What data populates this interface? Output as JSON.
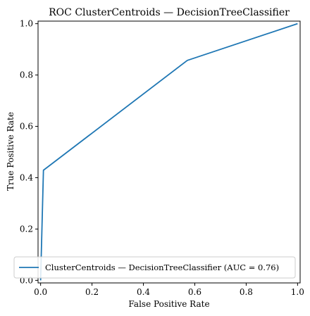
{
  "chart_data": {
    "type": "line",
    "title": "ROC ClusterCentroids — DecisionTreeClassifier",
    "xlabel": "False Positive Rate",
    "ylabel": "True Positive Rate",
    "xlim": [
      -0.01,
      1.01
    ],
    "ylim": [
      -0.01,
      1.01
    ],
    "xticks": [
      0.0,
      0.2,
      0.4,
      0.6,
      0.8,
      1.0
    ],
    "xtick_labels": [
      "0.0",
      "0.2",
      "0.4",
      "0.6",
      "0.8",
      "1.0"
    ],
    "yticks": [
      0.0,
      0.2,
      0.4,
      0.6,
      0.8,
      1.0
    ],
    "ytick_labels": [
      "0.0",
      "0.2",
      "0.4",
      "0.6",
      "0.8",
      "1.0"
    ],
    "grid": false,
    "legend_position": "lower-right",
    "series": [
      {
        "name": "ClusterCentroids — DecisionTreeClassifier (AUC = 0.76)",
        "color": "#1f77b4",
        "x": [
          0.0,
          0.011,
          0.571,
          1.0
        ],
        "y": [
          0.0,
          0.429,
          0.857,
          1.0
        ]
      }
    ]
  }
}
